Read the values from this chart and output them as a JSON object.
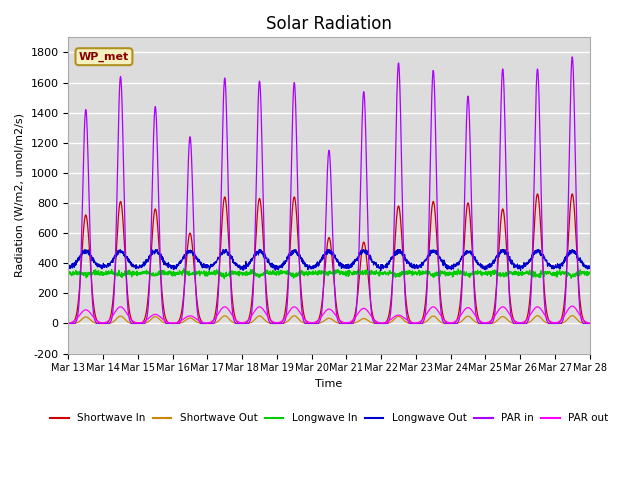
{
  "title": "Solar Radiation",
  "ylabel": "Radiation (W/m2, umol/m2/s)",
  "xlabel": "Time",
  "ylim": [
    -200,
    1900
  ],
  "yticks": [
    -200,
    0,
    200,
    400,
    600,
    800,
    1000,
    1200,
    1400,
    1600,
    1800
  ],
  "num_days": 15,
  "start_day": 13,
  "background_color": "#dcdcdc",
  "annotation_text": "WP_met",
  "annotation_bg": "#f5f0c0",
  "annotation_border": "#b09020",
  "legend_entries": [
    "Shortwave In",
    "Shortwave Out",
    "Longwave In",
    "Longwave Out",
    "PAR in",
    "PAR out"
  ],
  "line_colors": [
    "#cc0000",
    "#cc8800",
    "#00cc00",
    "#0000cc",
    "#aa00ff",
    "#ff00ff"
  ],
  "grid_color": "#ffffff",
  "title_fontsize": 12,
  "sw_peaks": [
    720,
    810,
    760,
    600,
    840,
    830,
    840,
    570,
    540,
    780,
    810,
    800,
    760,
    860,
    860
  ],
  "par_peaks": [
    1420,
    1640,
    1440,
    1240,
    1630,
    1610,
    1600,
    1150,
    1540,
    1730,
    1680,
    1510,
    1690,
    1690,
    1770
  ],
  "par_out_peaks": [
    90,
    110,
    60,
    50,
    110,
    110,
    110,
    95,
    100,
    55,
    110,
    105,
    110,
    110,
    115
  ]
}
